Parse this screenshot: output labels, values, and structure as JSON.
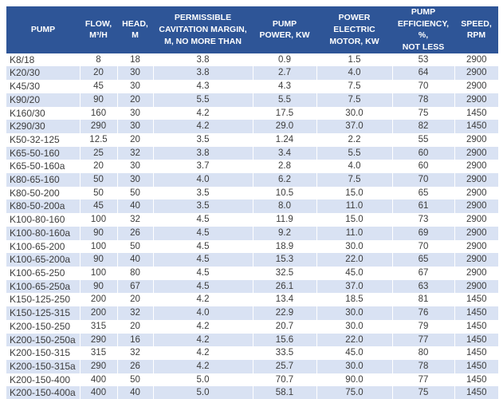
{
  "table": {
    "columns": [
      {
        "label": "PUMP"
      },
      {
        "label": "FLOW,\nM³/H"
      },
      {
        "label": "HEAD,\nM"
      },
      {
        "label": "PERMISSIBLE\nCAVITATION MARGIN,\nM, NO MORE THAN"
      },
      {
        "label": "PUMP\nPOWER, KW"
      },
      {
        "label": "POWER\nELECTRIC\nMOTOR, KW"
      },
      {
        "label": "PUMP\nEFFICIENCY, %,\nNOT LESS"
      },
      {
        "label": "SPEED,\nRPM"
      }
    ],
    "rows": [
      [
        "K8/18",
        "8",
        "18",
        "3.8",
        "0.9",
        "1.5",
        "53",
        "2900"
      ],
      [
        "K20/30",
        "20",
        "30",
        "3.8",
        "2.7",
        "4.0",
        "64",
        "2900"
      ],
      [
        "K45/30",
        "45",
        "30",
        "4.3",
        "4.3",
        "7.5",
        "70",
        "2900"
      ],
      [
        "K90/20",
        "90",
        "20",
        "5.5",
        "5.5",
        "7.5",
        "78",
        "2900"
      ],
      [
        "K160/30",
        "160",
        "30",
        "4.2",
        "17.5",
        "30.0",
        "75",
        "1450"
      ],
      [
        "K290/30",
        "290",
        "30",
        "4.2",
        "29.0",
        "37.0",
        "82",
        "1450"
      ],
      [
        "K50-32-125",
        "12.5",
        "20",
        "3.5",
        "1.24",
        "2.2",
        "55",
        "2900"
      ],
      [
        "K65-50-160",
        "25",
        "32",
        "3.8",
        "3.4",
        "5.5",
        "60",
        "2900"
      ],
      [
        "K65-50-160a",
        "20",
        "30",
        "3.7",
        "2.8",
        "4.0",
        "60",
        "2900"
      ],
      [
        "K80-65-160",
        "50",
        "30",
        "4.0",
        "6.2",
        "7.5",
        "70",
        "2900"
      ],
      [
        "K80-50-200",
        "50",
        "50",
        "3.5",
        "10.5",
        "15.0",
        "65",
        "2900"
      ],
      [
        "K80-50-200a",
        "45",
        "40",
        "3.5",
        "8.0",
        "11.0",
        "61",
        "2900"
      ],
      [
        "K100-80-160",
        "100",
        "32",
        "4.5",
        "11.9",
        "15.0",
        "73",
        "2900"
      ],
      [
        "K100-80-160a",
        "90",
        "26",
        "4.5",
        "9.2",
        "11.0",
        "69",
        "2900"
      ],
      [
        "K100-65-200",
        "100",
        "50",
        "4.5",
        "18.9",
        "30.0",
        "70",
        "2900"
      ],
      [
        "K100-65-200a",
        "90",
        "40",
        "4.5",
        "15.3",
        "22.0",
        "65",
        "2900"
      ],
      [
        "K100-65-250",
        "100",
        "80",
        "4.5",
        "32.5",
        "45.0",
        "67",
        "2900"
      ],
      [
        "K100-65-250a",
        "90",
        "67",
        "4.5",
        "26.1",
        "37.0",
        "63",
        "2900"
      ],
      [
        "K150-125-250",
        "200",
        "20",
        "4.2",
        "13.4",
        "18.5",
        "81",
        "1450"
      ],
      [
        "K150-125-315",
        "200",
        "32",
        "4.0",
        "22.9",
        "30.0",
        "76",
        "1450"
      ],
      [
        "K200-150-250",
        "315",
        "20",
        "4.2",
        "20.7",
        "30.0",
        "79",
        "1450"
      ],
      [
        "K200-150-250a",
        "290",
        "16",
        "4.2",
        "15.6",
        "22.0",
        "77",
        "1450"
      ],
      [
        "K200-150-315",
        "315",
        "32",
        "4.2",
        "33.5",
        "45.0",
        "80",
        "1450"
      ],
      [
        "K200-150-315a",
        "290",
        "26",
        "4.2",
        "25.7",
        "30.0",
        "78",
        "1450"
      ],
      [
        "K200-150-400",
        "400",
        "50",
        "5.0",
        "70.7",
        "90.0",
        "77",
        "1450"
      ],
      [
        "K200-150-400a",
        "400",
        "40",
        "5.0",
        "58.1",
        "75.0",
        "75",
        "1450"
      ]
    ],
    "colors": {
      "header_bg": "#2e5597",
      "header_text": "#ffffff",
      "band_row_bg": "#d9e2f3",
      "row_text": "#3d3d3d"
    }
  }
}
